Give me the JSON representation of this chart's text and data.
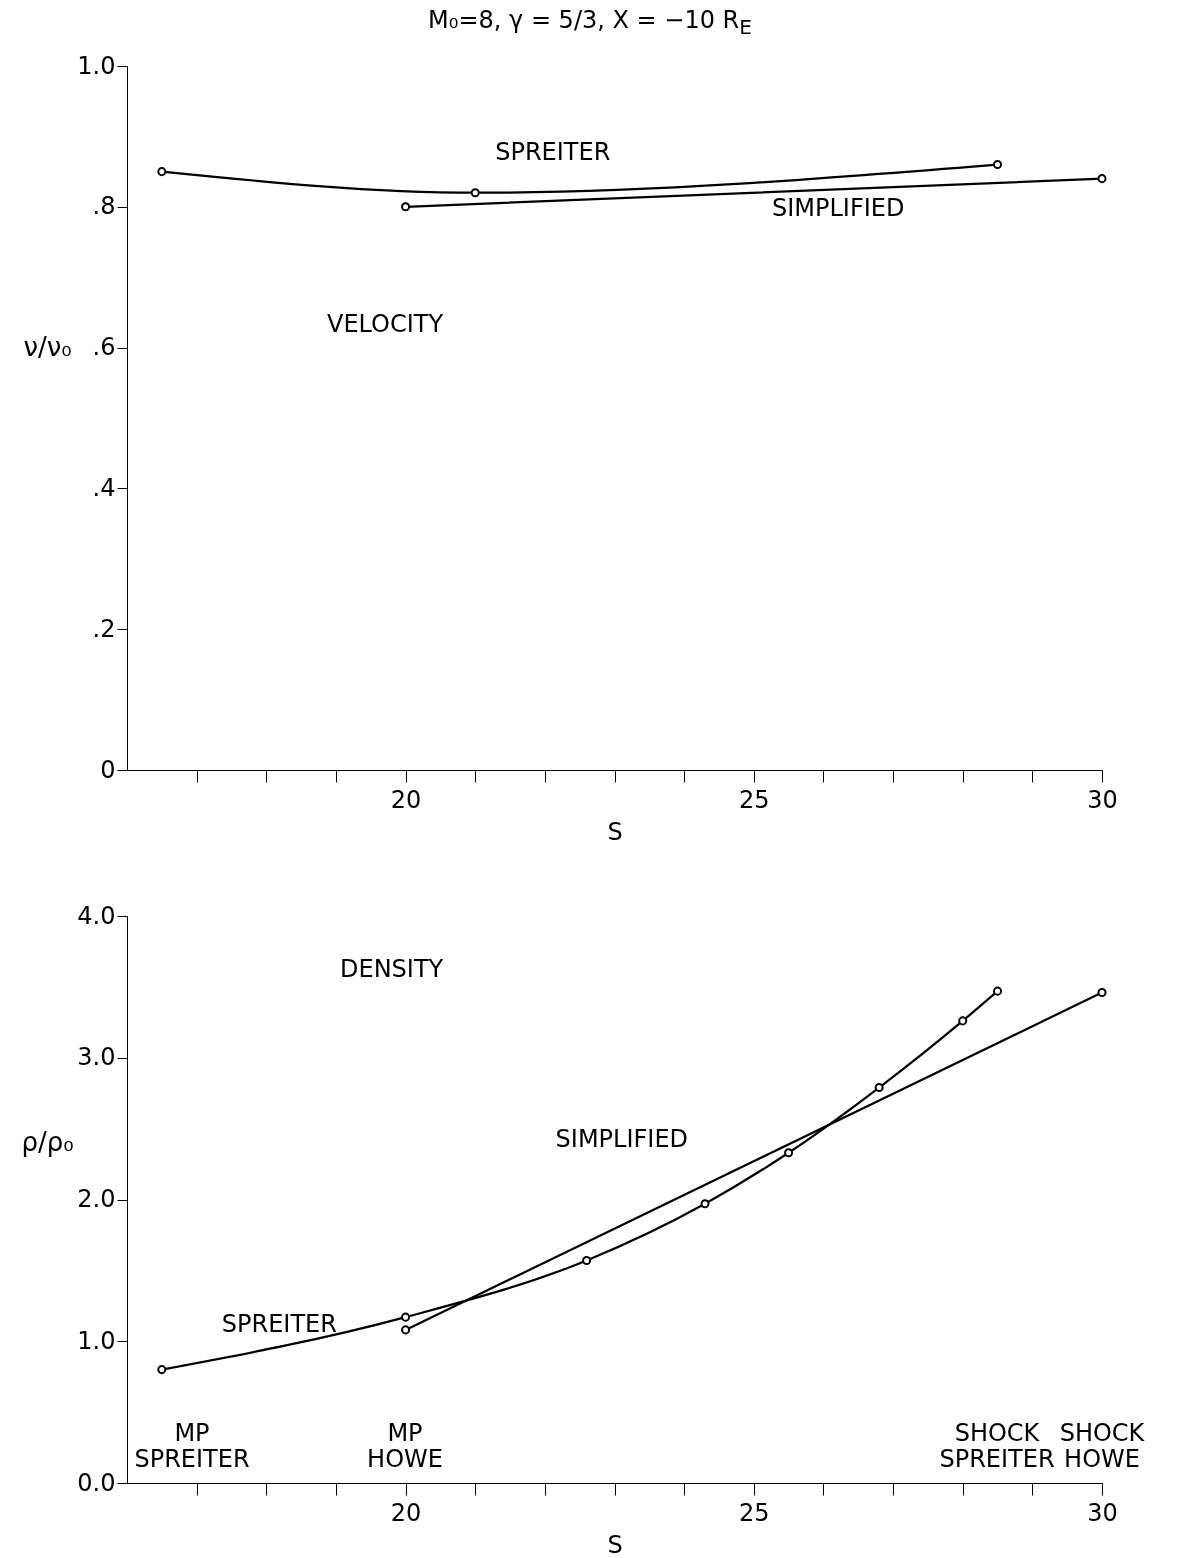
{
  "chart_data": [
    {
      "type": "line",
      "title": "M₀=8, γ = 5/3, X = −10 R$_{E}$",
      "xlabel": "S",
      "ylabel": "ν/ν₀",
      "xlim": [
        16,
        30
      ],
      "xticks": [
        {
          "value": 17,
          "label": null
        },
        {
          "value": 18,
          "label": null
        },
        {
          "value": 19,
          "label": null
        },
        20,
        {
          "value": 21,
          "label": null
        },
        {
          "value": 22,
          "label": null
        },
        {
          "value": 23,
          "label": null
        },
        {
          "value": 24,
          "label": null
        },
        25,
        {
          "value": 26,
          "label": null
        },
        {
          "value": 27,
          "label": null
        },
        {
          "value": 28,
          "label": null
        },
        {
          "value": 29,
          "label": null
        },
        30
      ],
      "ylim": [
        0,
        1
      ],
      "yticks": [
        0,
        {
          "value": 0.2,
          "label": ".2"
        },
        {
          "value": 0.4,
          "label": ".4"
        },
        {
          "value": 0.6,
          "label": ".6"
        },
        {
          "value": 0.8,
          "label": ".8"
        },
        {
          "value": 1,
          "label": "1.0"
        }
      ],
      "marker": "circle",
      "annotations": [
        "VELOCITY"
      ],
      "series": [
        {
          "name": "SPREITER",
          "color": "#000000",
          "x": [
            16.5,
            21,
            28.5
          ],
          "values": [
            0.85,
            0.82,
            0.86
          ]
        },
        {
          "name": "SIMPLIFIED",
          "color": "#000000",
          "x": [
            20,
            30
          ],
          "values": [
            0.8,
            0.84
          ]
        }
      ]
    },
    {
      "type": "line",
      "xlabel": "S",
      "ylabel": "ρ/ρ₀",
      "xlim": [
        16,
        30
      ],
      "xticks": [
        {
          "value": 17,
          "label": null
        },
        {
          "value": 18,
          "label": null
        },
        {
          "value": 19,
          "label": null
        },
        20,
        {
          "value": 21,
          "label": null
        },
        {
          "value": 22,
          "label": null
        },
        {
          "value": 23,
          "label": null
        },
        {
          "value": 24,
          "label": null
        },
        25,
        {
          "value": 26,
          "label": null
        },
        {
          "value": 27,
          "label": null
        },
        {
          "value": 28,
          "label": null
        },
        {
          "value": 29,
          "label": null
        },
        30
      ],
      "ylim": [
        0,
        4
      ],
      "yticks": [
        {
          "value": 0,
          "label": "0.0"
        },
        {
          "value": 1,
          "label": "1.0"
        },
        {
          "value": 2,
          "label": "2.0"
        },
        {
          "value": 3,
          "label": "3.0"
        },
        {
          "value": 4,
          "label": "4.0"
        }
      ],
      "marker": "circle",
      "annotations": [
        "DENSITY",
        "MP SPREITER",
        "MP HOWE",
        "SHOCK SPREITER",
        "SHOCK HOWE"
      ],
      "series": [
        {
          "name": "SPREITER",
          "color": "#000000",
          "x": [
            16.5,
            20,
            22.6,
            24.3,
            25.5,
            26.8,
            28,
            28.5
          ],
          "values": [
            0.8,
            1.17,
            1.57,
            1.97,
            2.33,
            2.79,
            3.26,
            3.47
          ]
        },
        {
          "name": "SIMPLIFIED",
          "color": "#000000",
          "x": [
            20,
            30
          ],
          "values": [
            1.08,
            3.46
          ]
        }
      ]
    }
  ]
}
